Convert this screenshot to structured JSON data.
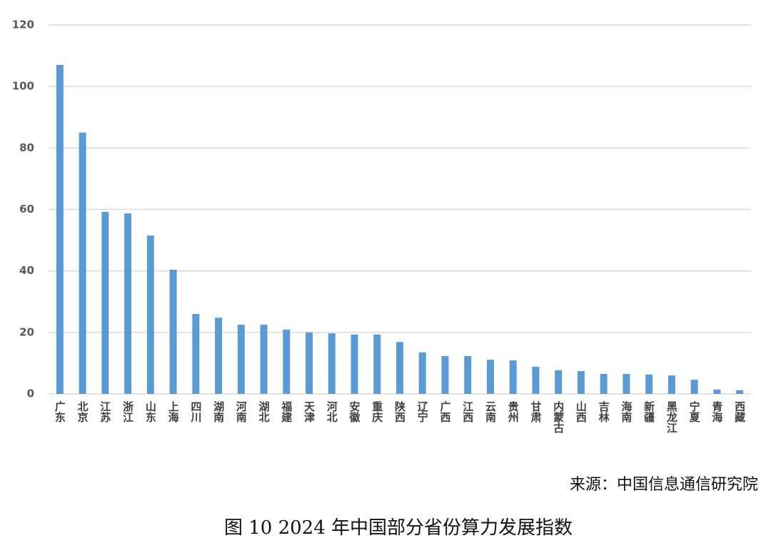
{
  "chart_data": {
    "type": "bar",
    "categories": [
      "广东",
      "北京",
      "江苏",
      "浙江",
      "山东",
      "上海",
      "四川",
      "湖南",
      "河南",
      "湖北",
      "福建",
      "天津",
      "河北",
      "安徽",
      "重庆",
      "陕西",
      "辽宁",
      "广西",
      "江西",
      "云南",
      "贵州",
      "甘肃",
      "内蒙古",
      "山西",
      "吉林",
      "海南",
      "新疆",
      "黑龙江",
      "宁夏",
      "青海",
      "西藏"
    ],
    "values": [
      107.0,
      85.0,
      59.2,
      58.7,
      51.5,
      40.4,
      26.0,
      24.8,
      22.5,
      22.5,
      20.9,
      20.0,
      19.7,
      19.3,
      19.3,
      16.9,
      13.5,
      12.3,
      12.3,
      11.1,
      10.9,
      8.8,
      7.7,
      7.4,
      6.5,
      6.5,
      6.3,
      6.0,
      4.6,
      1.4,
      1.2
    ],
    "color": "#5b9bd5",
    "ylim": [
      0,
      120
    ],
    "yticks": [
      0,
      20,
      40,
      60,
      80,
      100,
      120
    ],
    "grid": true,
    "source": "来源：中国信息通信研究院",
    "caption": "图 10 2024 年中国部分省份算力发展指数"
  }
}
